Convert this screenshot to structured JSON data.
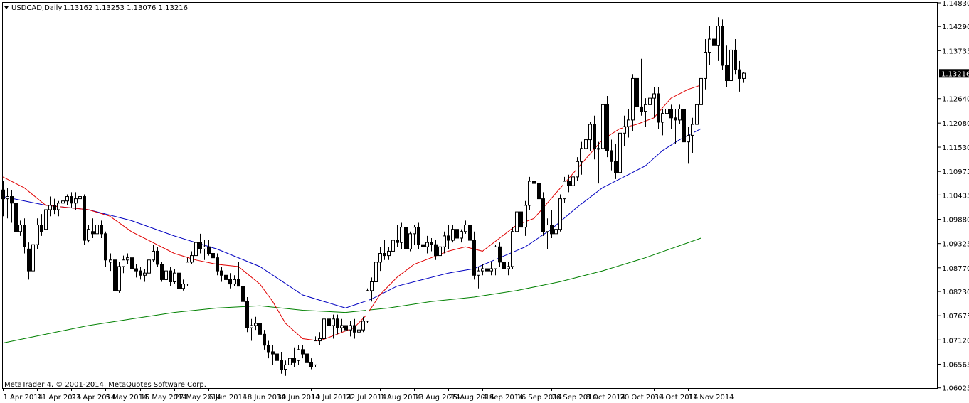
{
  "header": {
    "symbol": "USDCAD,Daily",
    "ohlc": "1.13162 1.13253 1.13076 1.13216"
  },
  "footer": {
    "copyright": "MetaTrader 4, © 2001-2014, MetaQuotes Software Corp."
  },
  "colors": {
    "background": "#ffffff",
    "candle": "#000000",
    "ma_fast": "#e00000",
    "ma_mid": "#0000c0",
    "ma_slow": "#008000",
    "current_price_box": "#000000",
    "current_price_text": "#ffffff"
  },
  "chart_data": {
    "type": "candlestick",
    "symbol": "USDCAD",
    "timeframe": "Daily",
    "current_price": 1.13216,
    "ylim": [
      1.0602,
      1.1483
    ],
    "y_ticks": [
      "1.14830",
      "1.14290",
      "1.13735",
      "1.13216",
      "1.12640",
      "1.12080",
      "1.11530",
      "1.10975",
      "1.10435",
      "1.09880",
      "1.09325",
      "1.08770",
      "1.08230",
      "1.07675",
      "1.07120",
      "1.06565",
      "1.06025"
    ],
    "x_ticks": [
      "1 Apr 2014",
      "11 Apr 2014",
      "23 Apr 2014",
      "5 May 2014",
      "15 May 2014",
      "27 May 2014",
      "6 Jun 2014",
      "18 Jun 2014",
      "30 Jun 2014",
      "10 Jul 2014",
      "22 Jul 2014",
      "1 Aug 2014",
      "13 Aug 2014",
      "25 Aug 2014",
      "4 Sep 2014",
      "16 Sep 2014",
      "26 Sep 2014",
      "8 Oct 2014",
      "20 Oct 2014",
      "30 Oct 2014",
      "11 Nov 2014"
    ],
    "x_tick_bar_index": [
      0,
      8,
      16,
      24,
      32,
      40,
      48,
      56,
      64,
      72,
      80,
      88,
      96,
      104,
      112,
      120,
      128,
      136,
      144,
      152,
      160
    ],
    "candles": [
      [
        1.1055,
        1.1075,
        1.0995,
        1.1035
      ],
      [
        1.1035,
        1.106,
        1.099,
        1.104
      ],
      [
        1.104,
        1.1055,
        1.098,
        1.1025
      ],
      [
        1.1025,
        1.105,
        1.094,
        1.096
      ],
      [
        1.096,
        1.0985,
        1.095,
        1.0975
      ],
      [
        1.0975,
        1.099,
        1.091,
        1.0925
      ],
      [
        1.092,
        1.0935,
        1.085,
        1.087
      ],
      [
        1.087,
        1.0945,
        1.086,
        1.093
      ],
      [
        1.093,
        1.099,
        1.092,
        1.0975
      ],
      [
        1.0975,
        1.1,
        1.095,
        1.096
      ],
      [
        1.0965,
        1.102,
        1.096,
        1.101
      ],
      [
        1.101,
        1.104,
        1.0995,
        1.102
      ],
      [
        1.102,
        1.1035,
        1.1,
        1.101
      ],
      [
        1.101,
        1.103,
        1.0995,
        1.1025
      ],
      [
        1.1025,
        1.105,
        1.1005,
        1.103
      ],
      [
        1.103,
        1.1045,
        1.102,
        1.104
      ],
      [
        1.104,
        1.105,
        1.1015,
        1.1025
      ],
      [
        1.1025,
        1.105,
        1.101,
        1.1035
      ],
      [
        1.1035,
        1.1045,
        1.1025,
        1.104
      ],
      [
        1.104,
        1.1045,
        1.093,
        1.094
      ],
      [
        1.094,
        1.0975,
        1.0935,
        1.0965
      ],
      [
        1.096,
        1.099,
        1.0945,
        1.0955
      ],
      [
        1.0955,
        1.099,
        1.094,
        1.0975
      ],
      [
        1.0975,
        1.0985,
        1.0945,
        1.0955
      ],
      [
        1.0955,
        1.096,
        1.088,
        1.0895
      ],
      [
        1.089,
        1.091,
        1.087,
        1.0895
      ],
      [
        1.0895,
        1.09,
        1.0815,
        1.0825
      ],
      [
        1.0825,
        1.089,
        1.082,
        1.088
      ],
      [
        1.088,
        1.0905,
        1.0865,
        1.0895
      ],
      [
        1.0895,
        1.091,
        1.0885,
        1.09
      ],
      [
        1.09,
        1.0915,
        1.086,
        1.0875
      ],
      [
        1.0875,
        1.0885,
        1.0855,
        1.087
      ],
      [
        1.087,
        1.088,
        1.085,
        1.086
      ],
      [
        1.086,
        1.0875,
        1.0845,
        1.0865
      ],
      [
        1.0865,
        1.09,
        1.086,
        1.0895
      ],
      [
        1.0895,
        1.093,
        1.089,
        1.0915
      ],
      [
        1.0915,
        1.0925,
        1.088,
        1.0885
      ],
      [
        1.0885,
        1.089,
        1.0845,
        1.085
      ],
      [
        1.085,
        1.088,
        1.0845,
        1.087
      ],
      [
        1.087,
        1.088,
        1.0835,
        1.0845
      ],
      [
        1.0845,
        1.0875,
        1.084,
        1.0865
      ],
      [
        1.0865,
        1.0885,
        1.082,
        1.083
      ],
      [
        1.083,
        1.085,
        1.0825,
        1.084
      ],
      [
        1.084,
        1.09,
        1.0835,
        1.089
      ],
      [
        1.089,
        1.0915,
        1.0885,
        1.0905
      ],
      [
        1.0905,
        1.0945,
        1.09,
        1.0935
      ],
      [
        1.0935,
        1.0955,
        1.091,
        1.092
      ],
      [
        1.092,
        1.094,
        1.0895,
        1.0925
      ],
      [
        1.0925,
        1.094,
        1.0905,
        1.091
      ],
      [
        1.091,
        1.093,
        1.0895,
        1.09
      ],
      [
        1.09,
        1.091,
        1.086,
        1.087
      ],
      [
        1.087,
        1.088,
        1.0845,
        1.086
      ],
      [
        1.086,
        1.087,
        1.084,
        1.085
      ],
      [
        1.085,
        1.0865,
        1.083,
        1.084
      ],
      [
        1.084,
        1.086,
        1.0835,
        1.085
      ],
      [
        1.085,
        1.089,
        1.084,
        1.0835
      ],
      [
        1.0835,
        1.084,
        1.079,
        1.08
      ],
      [
        1.08,
        1.081,
        1.073,
        1.074
      ],
      [
        1.074,
        1.076,
        1.071,
        1.0745
      ],
      [
        1.0745,
        1.0765,
        1.0735,
        1.075
      ],
      [
        1.075,
        1.076,
        1.072,
        1.0725
      ],
      [
        1.0725,
        1.0735,
        1.069,
        1.07
      ],
      [
        1.07,
        1.071,
        1.067,
        1.0685
      ],
      [
        1.0685,
        1.07,
        1.0655,
        1.068
      ],
      [
        1.068,
        1.069,
        1.0645,
        1.0665
      ],
      [
        1.0665,
        1.0685,
        1.0635,
        1.0645
      ],
      [
        1.0645,
        1.0665,
        1.063,
        1.0655
      ],
      [
        1.0655,
        1.068,
        1.064,
        1.067
      ],
      [
        1.067,
        1.0695,
        1.065,
        1.066
      ],
      [
        1.0665,
        1.07,
        1.0655,
        1.069
      ],
      [
        1.069,
        1.07,
        1.067,
        1.068
      ],
      [
        1.068,
        1.069,
        1.0655,
        1.066
      ],
      [
        1.066,
        1.067,
        1.0645,
        1.065
      ],
      [
        1.0655,
        1.072,
        1.065,
        1.071
      ],
      [
        1.071,
        1.073,
        1.07,
        1.0715
      ],
      [
        1.0715,
        1.077,
        1.071,
        1.076
      ],
      [
        1.076,
        1.079,
        1.0735,
        1.0745
      ],
      [
        1.0745,
        1.077,
        1.0715,
        1.076
      ],
      [
        1.076,
        1.077,
        1.0725,
        1.074
      ],
      [
        1.074,
        1.076,
        1.073,
        1.0745
      ],
      [
        1.0745,
        1.075,
        1.0725,
        1.0735
      ],
      [
        1.0735,
        1.0755,
        1.072,
        1.0745
      ],
      [
        1.0745,
        1.076,
        1.0715,
        1.073
      ],
      [
        1.073,
        1.074,
        1.072,
        1.0735
      ],
      [
        1.0735,
        1.0765,
        1.073,
        1.0755
      ],
      [
        1.0755,
        1.083,
        1.075,
        1.0825
      ],
      [
        1.0825,
        1.0855,
        1.08,
        1.0845
      ],
      [
        1.0845,
        1.09,
        1.0835,
        1.089
      ],
      [
        1.089,
        1.0925,
        1.087,
        1.091
      ],
      [
        1.091,
        1.094,
        1.0895,
        1.0905
      ],
      [
        1.0905,
        1.0925,
        1.0895,
        1.0915
      ],
      [
        1.0915,
        1.095,
        1.0905,
        1.094
      ],
      [
        1.094,
        1.0975,
        1.0925,
        1.0935
      ],
      [
        1.0935,
        1.098,
        1.092,
        1.097
      ],
      [
        1.097,
        1.0985,
        1.091,
        1.092
      ],
      [
        1.092,
        1.096,
        1.0915,
        1.0955
      ],
      [
        1.0955,
        1.0975,
        1.093,
        1.097
      ],
      [
        1.097,
        1.098,
        1.092,
        1.093
      ],
      [
        1.093,
        1.0945,
        1.0915,
        1.0925
      ],
      [
        1.0925,
        1.095,
        1.091,
        1.0935
      ],
      [
        1.0935,
        1.0945,
        1.0915,
        1.093
      ],
      [
        1.093,
        1.094,
        1.0895,
        1.0905
      ],
      [
        1.0905,
        1.0935,
        1.0895,
        1.0925
      ],
      [
        1.0925,
        1.096,
        1.091,
        1.095
      ],
      [
        1.095,
        1.0975,
        1.092,
        1.094
      ],
      [
        1.094,
        1.0975,
        1.0935,
        1.0965
      ],
      [
        1.0965,
        1.0985,
        1.0935,
        1.0945
      ],
      [
        1.0945,
        1.0965,
        1.0935,
        1.096
      ],
      [
        1.096,
        1.0985,
        1.0955,
        1.0975
      ],
      [
        1.0975,
        1.0995,
        1.0935,
        1.094
      ],
      [
        1.094,
        1.096,
        1.085,
        1.086
      ],
      [
        1.086,
        1.088,
        1.083,
        1.087
      ],
      [
        1.087,
        1.0885,
        1.086,
        1.0875
      ],
      [
        1.0875,
        1.088,
        1.081,
        1.087
      ],
      [
        1.087,
        1.089,
        1.086,
        1.0875
      ],
      [
        1.0875,
        1.093,
        1.086,
        1.0925
      ],
      [
        1.0925,
        1.0935,
        1.088,
        1.089
      ],
      [
        1.089,
        1.09,
        1.083,
        1.0875
      ],
      [
        1.0875,
        1.089,
        1.086,
        1.088
      ],
      [
        1.088,
        1.097,
        1.0875,
        1.096
      ],
      [
        1.096,
        1.102,
        1.094,
        1.1005
      ],
      [
        1.1005,
        1.104,
        1.096,
        1.097
      ],
      [
        1.097,
        1.103,
        1.095,
        1.102
      ],
      [
        1.102,
        1.1085,
        1.101,
        1.1075
      ],
      [
        1.1075,
        1.1095,
        1.1025,
        1.107
      ],
      [
        1.107,
        1.1095,
        1.102,
        1.1035
      ],
      [
        1.1035,
        1.105,
        1.095,
        1.096
      ],
      [
        1.096,
        1.099,
        1.092,
        1.0975
      ],
      [
        1.0975,
        1.101,
        1.0945,
        1.0955
      ],
      [
        1.0955,
        1.099,
        1.0885,
        1.0965
      ],
      [
        1.0965,
        1.1045,
        1.096,
        1.1035
      ],
      [
        1.1035,
        1.1085,
        1.1025,
        1.1075
      ],
      [
        1.1075,
        1.109,
        1.105,
        1.1065
      ],
      [
        1.1065,
        1.11,
        1.1045,
        1.1085
      ],
      [
        1.1085,
        1.113,
        1.1075,
        1.112
      ],
      [
        1.112,
        1.1165,
        1.109,
        1.115
      ],
      [
        1.115,
        1.1185,
        1.1125,
        1.117
      ],
      [
        1.117,
        1.121,
        1.1145,
        1.1205
      ],
      [
        1.1205,
        1.1225,
        1.1125,
        1.115
      ],
      [
        1.115,
        1.1165,
        1.107,
        1.115
      ],
      [
        1.115,
        1.1265,
        1.114,
        1.125
      ],
      [
        1.125,
        1.127,
        1.113,
        1.1145
      ],
      [
        1.1145,
        1.117,
        1.11,
        1.112
      ],
      [
        1.112,
        1.116,
        1.108,
        1.1095
      ],
      [
        1.1095,
        1.12,
        1.108,
        1.1185
      ],
      [
        1.1185,
        1.1225,
        1.1155,
        1.12
      ],
      [
        1.12,
        1.124,
        1.1175,
        1.1215
      ],
      [
        1.1215,
        1.132,
        1.119,
        1.131
      ],
      [
        1.131,
        1.138,
        1.121,
        1.1245
      ],
      [
        1.1245,
        1.1355,
        1.1225,
        1.1235
      ],
      [
        1.1235,
        1.1265,
        1.12,
        1.125
      ],
      [
        1.125,
        1.1275,
        1.12,
        1.1265
      ],
      [
        1.1265,
        1.129,
        1.122,
        1.1275
      ],
      [
        1.1275,
        1.129,
        1.1195,
        1.121
      ],
      [
        1.121,
        1.124,
        1.118,
        1.123
      ],
      [
        1.123,
        1.128,
        1.121,
        1.124
      ],
      [
        1.124,
        1.125,
        1.1195,
        1.122
      ],
      [
        1.122,
        1.124,
        1.116,
        1.1215
      ],
      [
        1.1215,
        1.125,
        1.1205,
        1.124
      ],
      [
        1.124,
        1.1245,
        1.1155,
        1.1165
      ],
      [
        1.1165,
        1.12,
        1.1115,
        1.118
      ],
      [
        1.118,
        1.122,
        1.114,
        1.1205
      ],
      [
        1.1205,
        1.126,
        1.118,
        1.125
      ],
      [
        1.125,
        1.133,
        1.124,
        1.131
      ],
      [
        1.131,
        1.14,
        1.1285,
        1.137
      ],
      [
        1.137,
        1.143,
        1.134,
        1.14
      ],
      [
        1.14,
        1.1465,
        1.1375,
        1.1385
      ],
      [
        1.1385,
        1.145,
        1.135,
        1.143
      ],
      [
        1.143,
        1.1445,
        1.133,
        1.134
      ],
      [
        1.134,
        1.1385,
        1.129,
        1.1305
      ],
      [
        1.1305,
        1.139,
        1.13,
        1.1375
      ],
      [
        1.1375,
        1.14,
        1.132,
        1.133
      ],
      [
        1.133,
        1.135,
        1.128,
        1.131
      ],
      [
        1.131,
        1.1325,
        1.13,
        1.1322
      ]
    ],
    "ma_fast": [
      [
        0,
        1.1085
      ],
      [
        5,
        1.106
      ],
      [
        10,
        1.102
      ],
      [
        15,
        1.1015
      ],
      [
        20,
        1.101
      ],
      [
        25,
        1.0995
      ],
      [
        30,
        1.096
      ],
      [
        35,
        1.0935
      ],
      [
        40,
        1.091
      ],
      [
        45,
        1.0895
      ],
      [
        50,
        1.0885
      ],
      [
        55,
        1.088
      ],
      [
        60,
        1.084
      ],
      [
        63,
        1.08
      ],
      [
        66,
        1.075
      ],
      [
        70,
        1.0715
      ],
      [
        74,
        1.071
      ],
      [
        78,
        1.0725
      ],
      [
        82,
        1.074
      ],
      [
        85,
        1.077
      ],
      [
        88,
        1.0815
      ],
      [
        92,
        1.0855
      ],
      [
        96,
        1.0885
      ],
      [
        100,
        1.09
      ],
      [
        104,
        1.0915
      ],
      [
        108,
        1.0925
      ],
      [
        112,
        1.0915
      ],
      [
        116,
        1.0945
      ],
      [
        120,
        1.0975
      ],
      [
        124,
        1.099
      ],
      [
        128,
        1.1035
      ],
      [
        132,
        1.108
      ],
      [
        136,
        1.1125
      ],
      [
        140,
        1.117
      ],
      [
        144,
        1.1195
      ],
      [
        148,
        1.1205
      ],
      [
        152,
        1.122
      ],
      [
        156,
        1.1265
      ],
      [
        160,
        1.1285
      ],
      [
        163,
        1.1295
      ]
    ],
    "ma_mid": [
      [
        0,
        1.104
      ],
      [
        10,
        1.102
      ],
      [
        20,
        1.101
      ],
      [
        30,
        1.0985
      ],
      [
        40,
        1.095
      ],
      [
        50,
        1.092
      ],
      [
        60,
        1.088
      ],
      [
        70,
        1.0815
      ],
      [
        80,
        1.0785
      ],
      [
        86,
        1.0805
      ],
      [
        92,
        1.0835
      ],
      [
        98,
        1.085
      ],
      [
        104,
        1.0865
      ],
      [
        110,
        1.0875
      ],
      [
        116,
        1.09
      ],
      [
        122,
        1.0925
      ],
      [
        128,
        1.0965
      ],
      [
        134,
        1.1015
      ],
      [
        140,
        1.106
      ],
      [
        146,
        1.109
      ],
      [
        150,
        1.111
      ],
      [
        154,
        1.1145
      ],
      [
        158,
        1.117
      ],
      [
        163,
        1.1195
      ]
    ],
    "ma_slow": [
      [
        0,
        1.0705
      ],
      [
        10,
        1.0725
      ],
      [
        20,
        1.0745
      ],
      [
        30,
        1.076
      ],
      [
        40,
        1.0775
      ],
      [
        50,
        1.0785
      ],
      [
        60,
        1.079
      ],
      [
        70,
        1.078
      ],
      [
        80,
        1.0775
      ],
      [
        90,
        1.0785
      ],
      [
        100,
        1.08
      ],
      [
        110,
        1.081
      ],
      [
        120,
        1.0825
      ],
      [
        130,
        1.0845
      ],
      [
        140,
        1.087
      ],
      [
        150,
        1.09
      ],
      [
        163,
        1.0945
      ]
    ]
  }
}
